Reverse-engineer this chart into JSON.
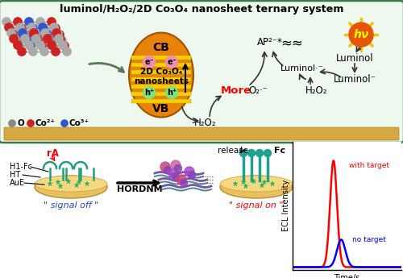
{
  "title": "luminol/H₂O₂/2D Co₃O₄ nanosheet ternary system",
  "border_color": "#4a8a5a",
  "ellipse_outer_color": "#e8820a",
  "ellipse_inner_color": "#f5d000",
  "electron_color": "#f090b0",
  "hole_color": "#90e090",
  "cb_label": "CB",
  "vb_label": "VB",
  "nanosheet_label": "2D Co₃O₄\nnanosheets",
  "more_label": "More",
  "legend_O": "O",
  "legend_Co2": "Co²⁺",
  "legend_Co3": "Co³⁺",
  "rA_label": "rA",
  "H1Fc_label": "H1-Fc",
  "HT_label": "HT",
  "AuE_label": "AuE",
  "HORDNM_label": "HORDNM",
  "release_label": "release",
  "Fc_label": "Fc",
  "signal_off_label": "\" signal off \"",
  "signal_on_label": "\" signal on \"",
  "with_target_label": "with target",
  "no_target_label": "no target",
  "ECL_label": "ECL Intensity",
  "time_label": "Time/s"
}
